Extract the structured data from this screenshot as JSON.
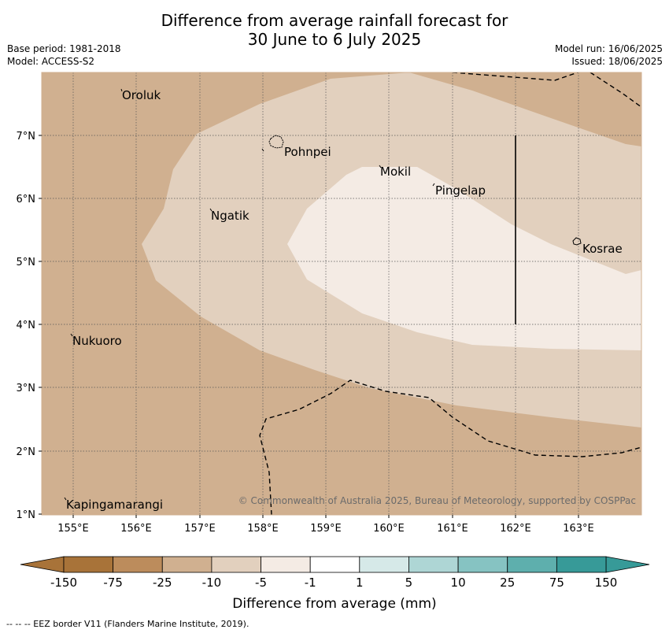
{
  "title_line1": "Difference from average rainfall forecast for",
  "title_line2": "30 June to 6 July 2025",
  "base_period": "Base period: 1981-2018",
  "model": "Model: ACCESS-S2",
  "model_run": "Model run: 16/06/2025",
  "issued": "Issued: 18/06/2025",
  "map": {
    "lon_ticks": [
      "155°E",
      "156°E",
      "157°E",
      "158°E",
      "159°E",
      "160°E",
      "161°E",
      "162°E",
      "163°E"
    ],
    "lat_ticks": [
      "7°N",
      "6°N",
      "5°N",
      "4°N",
      "3°N",
      "2°N",
      "1°N"
    ],
    "places": [
      "Oroluk",
      "Pohnpei",
      "Mokil",
      "Pingelap",
      "Ngatik",
      "Kosrae",
      "Nukuoro",
      "Kapingamarangi"
    ],
    "copyright": "© Commonwealth of Australia 2025, Bureau of Meteorology, supported by COSPPac"
  },
  "colorbar": {
    "labels": [
      "-150",
      "-75",
      "-25",
      "-10",
      "-5",
      "-1",
      "1",
      "5",
      "10",
      "25",
      "75",
      "150"
    ],
    "colors": [
      "#a87339",
      "#bc8c5c",
      "#d0b090",
      "#e2d0be",
      "#f4ebe4",
      "#ffffff",
      "#d6e9e8",
      "#aed6d5",
      "#86c3c2",
      "#5eafad",
      "#379a98"
    ],
    "label": "Difference from average (mm)"
  },
  "footer": "--  --  -- EEZ border V11 (Flanders Marine Institute, 2019)."
}
